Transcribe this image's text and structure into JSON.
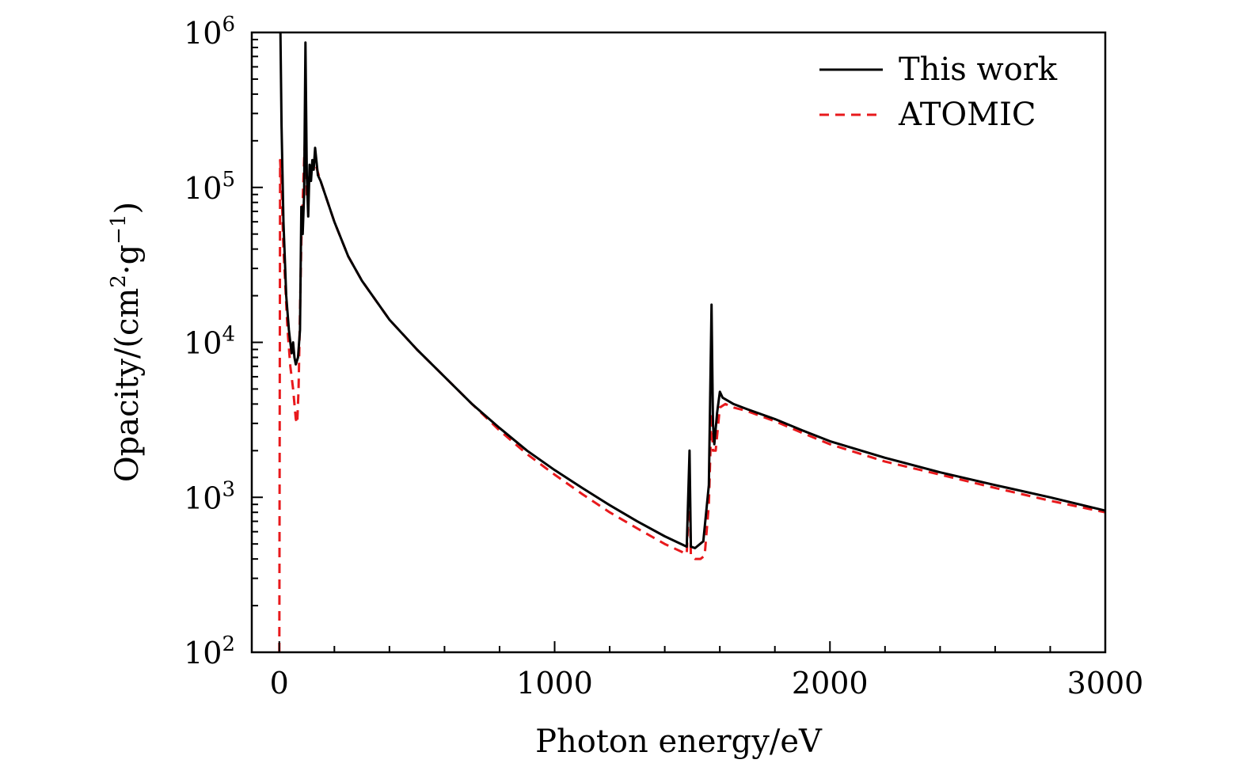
{
  "chart_data": {
    "type": "line",
    "title": "",
    "xlabel": "Photon energy/eV",
    "ylabel": "Opacity/(cm²·g⁻¹)",
    "ylabel_parts": {
      "pre": "Opacity/(cm",
      "sup1": "2",
      "mid": "·g",
      "sup2": "−1",
      "post": ")"
    },
    "xlim": [
      -100,
      3000
    ],
    "ylim": [
      100,
      1000000
    ],
    "yscale": "log",
    "x_ticks": [
      {
        "value": 0,
        "label": "0"
      },
      {
        "value": 1000,
        "label": "1000"
      },
      {
        "value": 2000,
        "label": "2000"
      },
      {
        "value": 3000,
        "label": "3000"
      }
    ],
    "y_ticks": [
      {
        "value": 100,
        "base": "10",
        "exp": "2"
      },
      {
        "value": 1000,
        "base": "10",
        "exp": "3"
      },
      {
        "value": 10000,
        "base": "10",
        "exp": "4"
      },
      {
        "value": 100000,
        "base": "10",
        "exp": "5"
      },
      {
        "value": 1000000,
        "base": "10",
        "exp": "6"
      }
    ],
    "legend": {
      "position": "top-right"
    },
    "series": [
      {
        "name": "This work",
        "color": "#000000",
        "dash": "solid",
        "points": [
          [
            4,
            1000000
          ],
          [
            8,
            250000
          ],
          [
            15,
            60000
          ],
          [
            25,
            20000
          ],
          [
            35,
            12000
          ],
          [
            40,
            10000
          ],
          [
            45,
            8500
          ],
          [
            50,
            10000
          ],
          [
            55,
            8000
          ],
          [
            60,
            7200
          ],
          [
            68,
            8000
          ],
          [
            75,
            12000
          ],
          [
            80,
            75000
          ],
          [
            85,
            50000
          ],
          [
            90,
            90000
          ],
          [
            95,
            860000
          ],
          [
            100,
            120000
          ],
          [
            105,
            65000
          ],
          [
            110,
            140000
          ],
          [
            115,
            110000
          ],
          [
            120,
            150000
          ],
          [
            125,
            130000
          ],
          [
            130,
            180000
          ],
          [
            140,
            120000
          ],
          [
            150,
            110000
          ],
          [
            200,
            60000
          ],
          [
            250,
            36000
          ],
          [
            300,
            25000
          ],
          [
            400,
            14000
          ],
          [
            500,
            9000
          ],
          [
            600,
            6000
          ],
          [
            700,
            4000
          ],
          [
            800,
            2800
          ],
          [
            900,
            2000
          ],
          [
            1000,
            1500
          ],
          [
            1100,
            1150
          ],
          [
            1200,
            890
          ],
          [
            1300,
            700
          ],
          [
            1400,
            560
          ],
          [
            1480,
            480
          ],
          [
            1490,
            2000
          ],
          [
            1495,
            480
          ],
          [
            1510,
            470
          ],
          [
            1540,
            520
          ],
          [
            1560,
            1200
          ],
          [
            1570,
            17500
          ],
          [
            1575,
            3000
          ],
          [
            1580,
            2200
          ],
          [
            1590,
            3500
          ],
          [
            1600,
            4800
          ],
          [
            1610,
            4400
          ],
          [
            1650,
            4000
          ],
          [
            1700,
            3700
          ],
          [
            1800,
            3200
          ],
          [
            1900,
            2700
          ],
          [
            2000,
            2300
          ],
          [
            2200,
            1800
          ],
          [
            2400,
            1450
          ],
          [
            2600,
            1200
          ],
          [
            2800,
            1000
          ],
          [
            3000,
            820
          ]
        ]
      },
      {
        "name": "ATOMIC",
        "color": "#e8191c",
        "dash": "dashed",
        "points": [
          [
            0,
            100
          ],
          [
            3,
            150000
          ],
          [
            8,
            100000
          ],
          [
            15,
            40000
          ],
          [
            30,
            12000
          ],
          [
            40,
            7000
          ],
          [
            50,
            5000
          ],
          [
            60,
            3200
          ],
          [
            65,
            3000
          ],
          [
            70,
            5000
          ],
          [
            80,
            45000
          ],
          [
            90,
            150000
          ],
          [
            95,
            240000
          ],
          [
            100,
            90000
          ],
          [
            110,
            120000
          ],
          [
            120,
            140000
          ],
          [
            130,
            145000
          ],
          [
            140,
            125000
          ],
          [
            150,
            110000
          ],
          [
            200,
            60000
          ],
          [
            250,
            36000
          ],
          [
            300,
            25000
          ],
          [
            400,
            14000
          ],
          [
            500,
            9000
          ],
          [
            600,
            6000
          ],
          [
            700,
            4000
          ],
          [
            800,
            2700
          ],
          [
            900,
            1900
          ],
          [
            1000,
            1400
          ],
          [
            1100,
            1050
          ],
          [
            1200,
            800
          ],
          [
            1300,
            630
          ],
          [
            1400,
            500
          ],
          [
            1480,
            430
          ],
          [
            1490,
            1200
          ],
          [
            1495,
            420
          ],
          [
            1510,
            400
          ],
          [
            1530,
            400
          ],
          [
            1545,
            420
          ],
          [
            1560,
            900
          ],
          [
            1570,
            3500
          ],
          [
            1575,
            2000
          ],
          [
            1585,
            2000
          ],
          [
            1600,
            3800
          ],
          [
            1620,
            4000
          ],
          [
            1650,
            3800
          ],
          [
            1700,
            3600
          ],
          [
            1800,
            3100
          ],
          [
            1900,
            2600
          ],
          [
            2000,
            2200
          ],
          [
            2200,
            1700
          ],
          [
            2400,
            1400
          ],
          [
            2600,
            1150
          ],
          [
            2800,
            950
          ],
          [
            3000,
            800
          ]
        ]
      }
    ]
  }
}
